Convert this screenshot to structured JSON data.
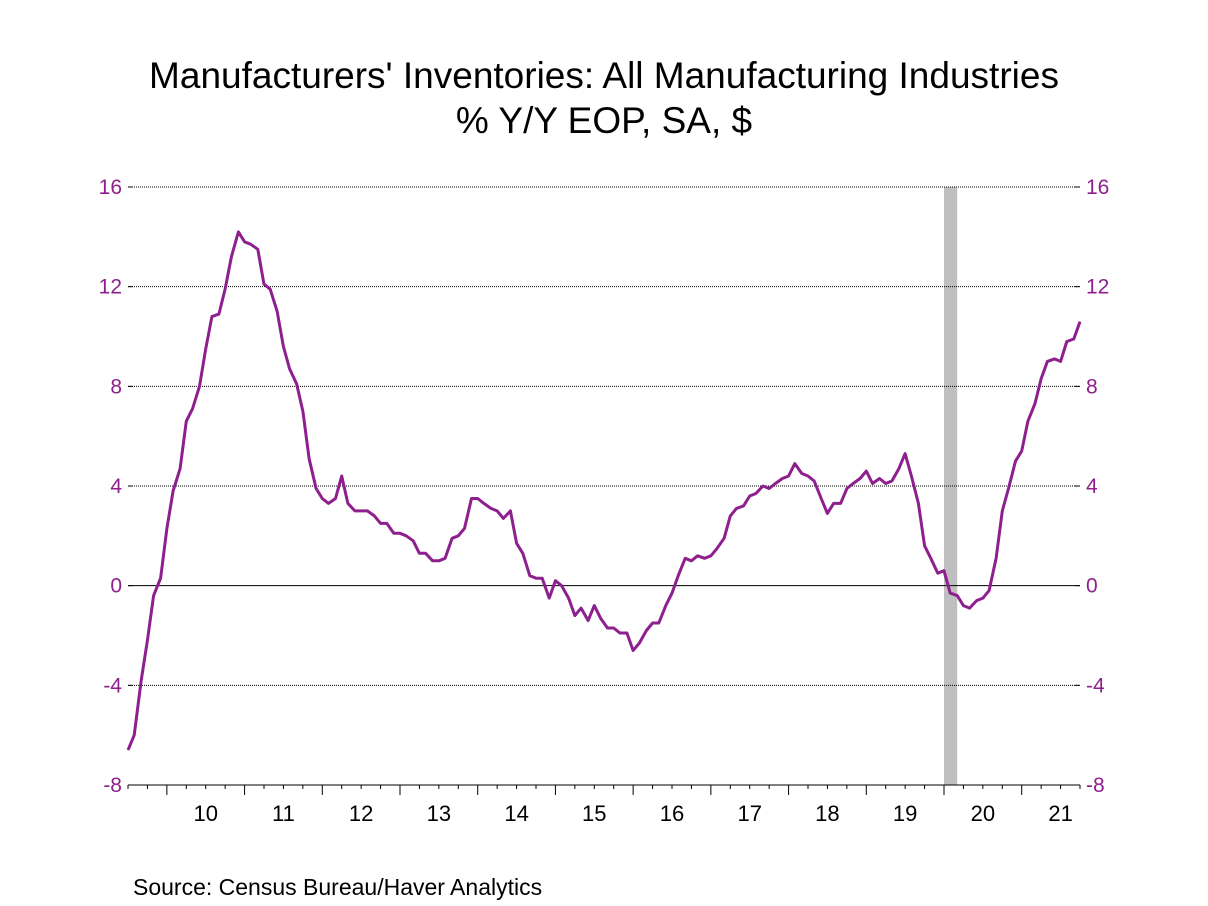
{
  "title_line1": "Manufacturers' Inventories: All Manufacturing Industries",
  "title_line2": "% Y/Y   EOP, SA, $",
  "source": "Source:  Census Bureau/Haver Analytics",
  "colors": {
    "line": "#8e1f8e",
    "recession": "#bfbfbf",
    "axis_text": "#8e1f8e"
  },
  "chart_data": {
    "type": "line",
    "title": "Manufacturers' Inventories: All Manufacturing Industries",
    "subtitle": "% Y/Y   EOP, SA, $",
    "xlabel": "",
    "ylabel": "",
    "ylim": [
      -8,
      16
    ],
    "yticks": [
      -8,
      -4,
      0,
      4,
      8,
      12,
      16
    ],
    "xlim": [
      2009.5,
      2021.75
    ],
    "xticks": [
      "10",
      "11",
      "12",
      "13",
      "14",
      "15",
      "16",
      "17",
      "18",
      "19",
      "20",
      "21"
    ],
    "grid": true,
    "recession": [
      2020.0,
      2020.17
    ],
    "series": [
      {
        "values": [
          [
            2009.5,
            -6.6
          ],
          [
            2009.58,
            -6.0
          ],
          [
            2009.67,
            -3.8
          ],
          [
            2009.75,
            -2.2
          ],
          [
            2009.83,
            -0.4
          ],
          [
            2009.92,
            0.3
          ],
          [
            2010.0,
            2.3
          ],
          [
            2010.08,
            3.8
          ],
          [
            2010.17,
            4.7
          ],
          [
            2010.25,
            6.6
          ],
          [
            2010.33,
            7.1
          ],
          [
            2010.42,
            8.0
          ],
          [
            2010.5,
            9.5
          ],
          [
            2010.58,
            10.8
          ],
          [
            2010.67,
            10.9
          ],
          [
            2010.75,
            11.9
          ],
          [
            2010.83,
            13.2
          ],
          [
            2010.92,
            14.2
          ],
          [
            2011.0,
            13.8
          ],
          [
            2011.08,
            13.7
          ],
          [
            2011.17,
            13.5
          ],
          [
            2011.25,
            12.1
          ],
          [
            2011.33,
            11.9
          ],
          [
            2011.42,
            11.0
          ],
          [
            2011.5,
            9.6
          ],
          [
            2011.58,
            8.7
          ],
          [
            2011.67,
            8.1
          ],
          [
            2011.75,
            7.0
          ],
          [
            2011.83,
            5.1
          ],
          [
            2011.92,
            3.9
          ],
          [
            2012.0,
            3.5
          ],
          [
            2012.08,
            3.3
          ],
          [
            2012.17,
            3.5
          ],
          [
            2012.25,
            4.4
          ],
          [
            2012.33,
            3.3
          ],
          [
            2012.42,
            3.0
          ],
          [
            2012.5,
            3.0
          ],
          [
            2012.58,
            3.0
          ],
          [
            2012.67,
            2.8
          ],
          [
            2012.75,
            2.5
          ],
          [
            2012.83,
            2.5
          ],
          [
            2012.92,
            2.1
          ],
          [
            2013.0,
            2.1
          ],
          [
            2013.08,
            2.0
          ],
          [
            2013.17,
            1.8
          ],
          [
            2013.25,
            1.3
          ],
          [
            2013.33,
            1.3
          ],
          [
            2013.42,
            1.0
          ],
          [
            2013.5,
            1.0
          ],
          [
            2013.58,
            1.1
          ],
          [
            2013.67,
            1.9
          ],
          [
            2013.75,
            2.0
          ],
          [
            2013.83,
            2.3
          ],
          [
            2013.92,
            3.5
          ],
          [
            2014.0,
            3.5
          ],
          [
            2014.08,
            3.3
          ],
          [
            2014.17,
            3.1
          ],
          [
            2014.25,
            3.0
          ],
          [
            2014.33,
            2.7
          ],
          [
            2014.42,
            3.0
          ],
          [
            2014.5,
            1.7
          ],
          [
            2014.58,
            1.3
          ],
          [
            2014.67,
            0.4
          ],
          [
            2014.75,
            0.3
          ],
          [
            2014.83,
            0.3
          ],
          [
            2014.92,
            -0.5
          ],
          [
            2015.0,
            0.2
          ],
          [
            2015.08,
            0.0
          ],
          [
            2015.17,
            -0.5
          ],
          [
            2015.25,
            -1.2
          ],
          [
            2015.33,
            -0.9
          ],
          [
            2015.42,
            -1.4
          ],
          [
            2015.5,
            -0.8
          ],
          [
            2015.58,
            -1.3
          ],
          [
            2015.67,
            -1.7
          ],
          [
            2015.75,
            -1.7
          ],
          [
            2015.83,
            -1.9
          ],
          [
            2015.92,
            -1.9
          ],
          [
            2016.0,
            -2.6
          ],
          [
            2016.08,
            -2.3
          ],
          [
            2016.17,
            -1.8
          ],
          [
            2016.25,
            -1.5
          ],
          [
            2016.33,
            -1.5
          ],
          [
            2016.42,
            -0.8
          ],
          [
            2016.5,
            -0.3
          ],
          [
            2016.58,
            0.4
          ],
          [
            2016.67,
            1.1
          ],
          [
            2016.75,
            1.0
          ],
          [
            2016.83,
            1.2
          ],
          [
            2016.92,
            1.1
          ],
          [
            2017.0,
            1.2
          ],
          [
            2017.08,
            1.5
          ],
          [
            2017.17,
            1.9
          ],
          [
            2017.25,
            2.8
          ],
          [
            2017.33,
            3.1
          ],
          [
            2017.42,
            3.2
          ],
          [
            2017.5,
            3.6
          ],
          [
            2017.58,
            3.7
          ],
          [
            2017.67,
            4.0
          ],
          [
            2017.75,
            3.9
          ],
          [
            2017.83,
            4.1
          ],
          [
            2017.92,
            4.3
          ],
          [
            2018.0,
            4.4
          ],
          [
            2018.08,
            4.9
          ],
          [
            2018.17,
            4.5
          ],
          [
            2018.25,
            4.4
          ],
          [
            2018.33,
            4.2
          ],
          [
            2018.42,
            3.5
          ],
          [
            2018.5,
            2.9
          ],
          [
            2018.58,
            3.3
          ],
          [
            2018.67,
            3.3
          ],
          [
            2018.75,
            3.9
          ],
          [
            2018.83,
            4.1
          ],
          [
            2018.92,
            4.3
          ],
          [
            2019.0,
            4.6
          ],
          [
            2019.08,
            4.1
          ],
          [
            2019.17,
            4.3
          ],
          [
            2019.25,
            4.1
          ],
          [
            2019.33,
            4.2
          ],
          [
            2019.42,
            4.7
          ],
          [
            2019.5,
            5.3
          ],
          [
            2019.58,
            4.4
          ],
          [
            2019.67,
            3.3
          ],
          [
            2019.75,
            1.6
          ],
          [
            2019.83,
            1.1
          ],
          [
            2019.92,
            0.5
          ],
          [
            2020.0,
            0.6
          ],
          [
            2020.08,
            -0.3
          ],
          [
            2020.17,
            -0.4
          ],
          [
            2020.25,
            -0.8
          ],
          [
            2020.33,
            -0.9
          ],
          [
            2020.42,
            -0.6
          ],
          [
            2020.5,
            -0.5
          ],
          [
            2020.58,
            -0.2
          ],
          [
            2020.67,
            1.1
          ],
          [
            2020.75,
            3.0
          ],
          [
            2020.83,
            3.9
          ],
          [
            2020.92,
            5.0
          ],
          [
            2021.0,
            5.4
          ],
          [
            2021.08,
            6.6
          ],
          [
            2021.17,
            7.3
          ],
          [
            2021.25,
            8.3
          ],
          [
            2021.33,
            9.0
          ],
          [
            2021.42,
            9.1
          ],
          [
            2021.5,
            9.0
          ],
          [
            2021.58,
            9.8
          ],
          [
            2021.67,
            9.9
          ],
          [
            2021.75,
            10.6
          ]
        ]
      }
    ]
  }
}
